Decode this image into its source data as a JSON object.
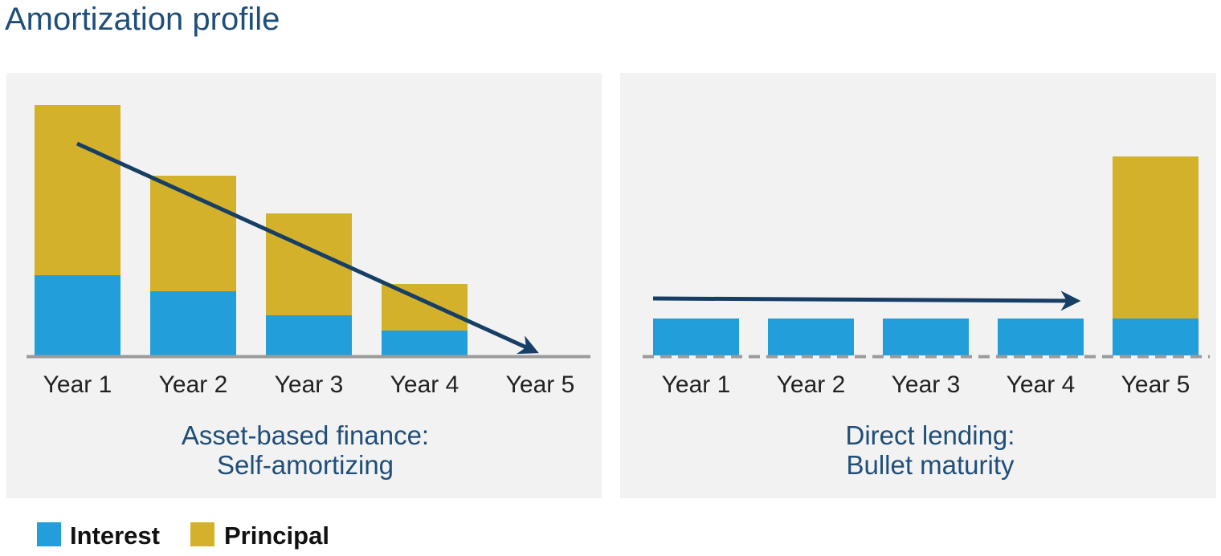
{
  "title": "Amortization profile",
  "colors": {
    "interest": "#229fda",
    "principal": "#d3b12b",
    "panel_bg": "#f2f2f2",
    "baseline": "#9b9b9b",
    "arrow": "#173f66",
    "text_accent": "#1f4e79"
  },
  "legend": [
    {
      "label": "Interest",
      "color_key": "interest"
    },
    {
      "label": "Principal",
      "color_key": "principal"
    }
  ],
  "chart_data": [
    {
      "type": "bar",
      "stacked": true,
      "caption": [
        "Asset-based finance:",
        "Self-amortizing"
      ],
      "categories": [
        "Year 1",
        "Year 2",
        "Year 3",
        "Year 4",
        "Year 5"
      ],
      "series": [
        {
          "name": "Interest",
          "values": [
            100,
            80,
            50,
            31,
            0
          ]
        },
        {
          "name": "Principal",
          "values": [
            212,
            144,
            127,
            58,
            0
          ]
        }
      ],
      "trend": "declining"
    },
    {
      "type": "bar",
      "stacked": true,
      "caption": [
        "Direct lending:",
        "Bullet maturity"
      ],
      "categories": [
        "Year 1",
        "Year 2",
        "Year 3",
        "Year 4",
        "Year 5"
      ],
      "series": [
        {
          "name": "Interest",
          "values": [
            46,
            46,
            46,
            46,
            46
          ]
        },
        {
          "name": "Principal",
          "values": [
            0,
            0,
            0,
            0,
            202
          ]
        }
      ],
      "trend": "flat"
    }
  ]
}
